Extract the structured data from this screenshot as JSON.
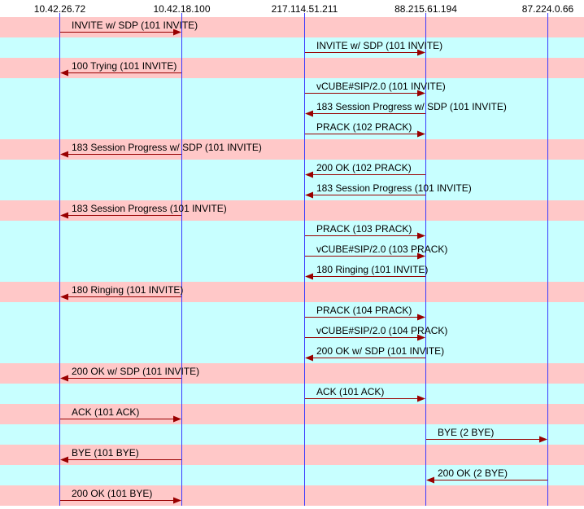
{
  "hosts": [
    {
      "name": "10.42.26.72"
    },
    {
      "name": "10.42.18.100"
    },
    {
      "name": "217.114.51.211"
    },
    {
      "name": "88.215.61.194"
    },
    {
      "name": "87.224.0.66"
    }
  ],
  "colors": {
    "band_a": "#ffc8c8",
    "band_b": "#c8ffff",
    "lifeline": "#3a3aff",
    "arrow": "#990000"
  },
  "messages": [
    {
      "label": "INVITE w/ SDP (101 INVITE)",
      "from": 0,
      "to": 1,
      "band": "a"
    },
    {
      "label": "INVITE w/ SDP (101 INVITE)",
      "from": 2,
      "to": 3,
      "band": "b"
    },
    {
      "label": "100 Trying (101 INVITE)",
      "from": 1,
      "to": 0,
      "band": "a"
    },
    {
      "label": "vCUBE#SIP/2.0 (101 INVITE)",
      "from": 2,
      "to": 3,
      "band": "b"
    },
    {
      "label": "183 Session Progress w/ SDP (101 INVITE)",
      "from": 3,
      "to": 2,
      "band": "b"
    },
    {
      "label": "PRACK (102 PRACK)",
      "from": 2,
      "to": 3,
      "band": "b"
    },
    {
      "label": "183 Session Progress w/ SDP (101 INVITE)",
      "from": 1,
      "to": 0,
      "band": "a"
    },
    {
      "label": "200 OK (102 PRACK)",
      "from": 3,
      "to": 2,
      "band": "b"
    },
    {
      "label": "183 Session Progress (101 INVITE)",
      "from": 3,
      "to": 2,
      "band": "b"
    },
    {
      "label": "183 Session Progress (101 INVITE)",
      "from": 1,
      "to": 0,
      "band": "a"
    },
    {
      "label": "PRACK (103 PRACK)",
      "from": 2,
      "to": 3,
      "band": "b"
    },
    {
      "label": "vCUBE#SIP/2.0 (103 PRACK)",
      "from": 2,
      "to": 3,
      "band": "b"
    },
    {
      "label": "180 Ringing (101 INVITE)",
      "from": 3,
      "to": 2,
      "band": "b"
    },
    {
      "label": "180 Ringing (101 INVITE)",
      "from": 1,
      "to": 0,
      "band": "a"
    },
    {
      "label": "PRACK (104 PRACK)",
      "from": 2,
      "to": 3,
      "band": "b"
    },
    {
      "label": "vCUBE#SIP/2.0 (104 PRACK)",
      "from": 2,
      "to": 3,
      "band": "b"
    },
    {
      "label": "200 OK w/ SDP (101 INVITE)",
      "from": 3,
      "to": 2,
      "band": "b"
    },
    {
      "label": "200 OK w/ SDP (101 INVITE)",
      "from": 1,
      "to": 0,
      "band": "a"
    },
    {
      "label": "ACK (101 ACK)",
      "from": 2,
      "to": 3,
      "band": "b"
    },
    {
      "label": "ACK (101 ACK)",
      "from": 0,
      "to": 1,
      "band": "a"
    },
    {
      "label": "BYE (2 BYE)",
      "from": 3,
      "to": 4,
      "band": "b"
    },
    {
      "label": "BYE (101 BYE)",
      "from": 1,
      "to": 0,
      "band": "a"
    },
    {
      "label": "200 OK (2 BYE)",
      "from": 4,
      "to": 3,
      "band": "b"
    },
    {
      "label": "200 OK (101 BYE)",
      "from": 0,
      "to": 1,
      "band": "a"
    }
  ]
}
